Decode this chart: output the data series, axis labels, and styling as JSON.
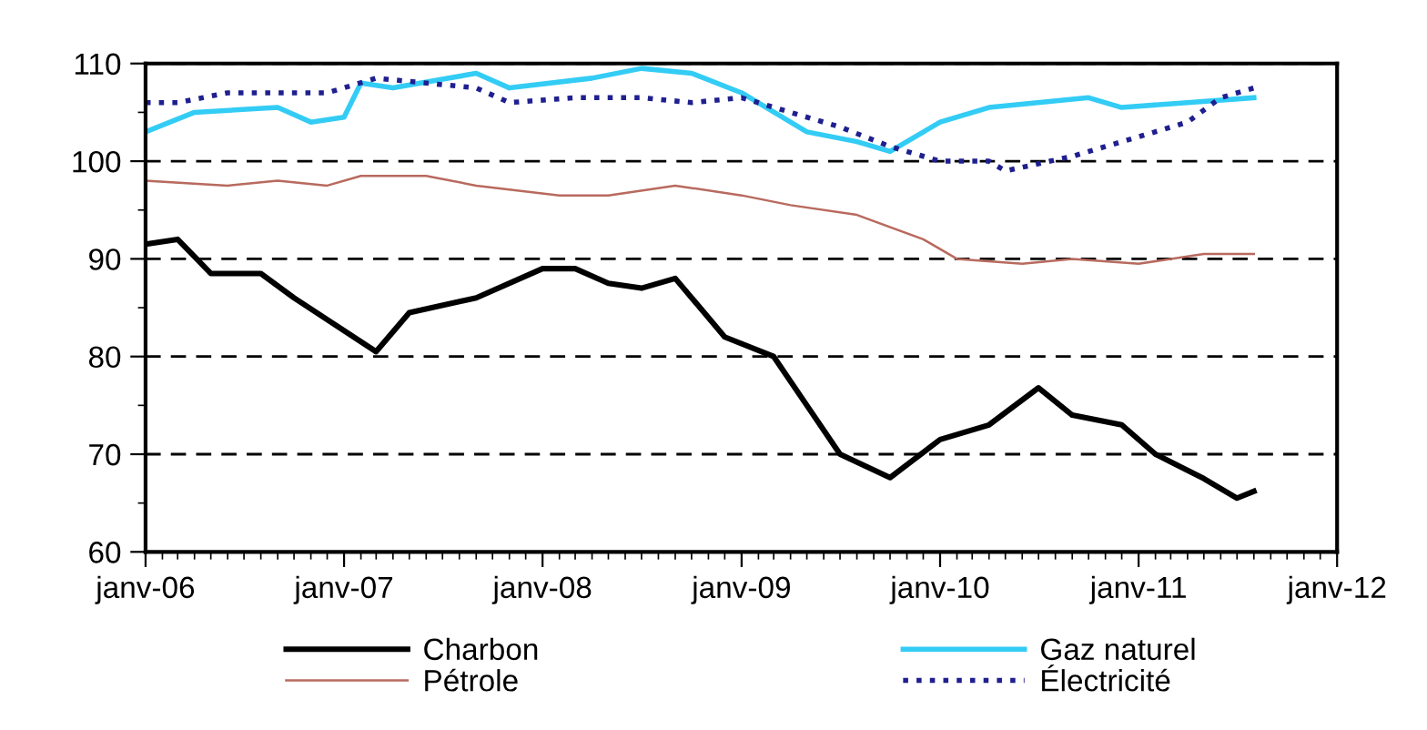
{
  "chart_data": {
    "type": "line",
    "xlim": [
      "2006-01",
      "2012-01"
    ],
    "ylim": [
      60,
      110
    ],
    "yticks": [
      60,
      70,
      80,
      90,
      100,
      110
    ],
    "xticks": [
      {
        "value": "2006-01",
        "label": "janv-06"
      },
      {
        "value": "2007-01",
        "label": "janv-07"
      },
      {
        "value": "2008-01",
        "label": "janv-08"
      },
      {
        "value": "2009-01",
        "label": "janv-09"
      },
      {
        "value": "2010-01",
        "label": "janv-10"
      },
      {
        "value": "2011-01",
        "label": "janv-11"
      },
      {
        "value": "2012-01",
        "label": "janv-12"
      }
    ],
    "grid": "y",
    "legend": "bottom",
    "series": [
      {
        "name": "Charbon",
        "color": "#000000",
        "line_style": "solid",
        "x": [
          "2006-01",
          "2006-03",
          "2006-05",
          "2006-08",
          "2006-10",
          "2007-03",
          "2007-05",
          "2007-09",
          "2008-01",
          "2008-03",
          "2008-05",
          "2008-07",
          "2008-09",
          "2008-12",
          "2009-03",
          "2009-05",
          "2009-07",
          "2009-10",
          "2010-01",
          "2010-04",
          "2010-07",
          "2010-09",
          "2010-12",
          "2011-02",
          "2011-05",
          "2011-07",
          "2011-08"
        ],
        "values": [
          91.5,
          92,
          88.5,
          88.5,
          86,
          80.5,
          84.5,
          86,
          89,
          89,
          87.5,
          87,
          88,
          82,
          80,
          75,
          70,
          67.6,
          71.5,
          73,
          76.8,
          74,
          73,
          70,
          67.5,
          65.5,
          66.2
        ]
      },
      {
        "name": "Pétrole",
        "color": "#b86a5e",
        "line_style": "solid",
        "x": [
          "2006-01",
          "2006-06",
          "2006-09",
          "2006-12",
          "2007-02",
          "2007-06",
          "2007-09",
          "2008-02",
          "2008-05",
          "2008-09",
          "2009-01",
          "2009-04",
          "2009-08",
          "2009-12",
          "2010-02",
          "2010-06",
          "2010-09",
          "2011-01",
          "2011-05",
          "2011-08"
        ],
        "values": [
          98,
          97.5,
          98,
          97.5,
          98.5,
          98.5,
          97.5,
          96.5,
          96.5,
          97.5,
          96.5,
          95.5,
          94.5,
          92,
          90,
          89.5,
          90,
          89.5,
          90.5,
          90.5
        ]
      },
      {
        "name": "Gaz naturel",
        "color": "#33ccf5",
        "line_style": "solid",
        "x": [
          "2006-01",
          "2006-04",
          "2006-09",
          "2006-11",
          "2007-01",
          "2007-02",
          "2007-04",
          "2007-09",
          "2007-11",
          "2008-04",
          "2008-07",
          "2008-10",
          "2009-01",
          "2009-05",
          "2009-08",
          "2009-10",
          "2010-01",
          "2010-04",
          "2010-10",
          "2010-12",
          "2011-04",
          "2011-08"
        ],
        "values": [
          103,
          105,
          105.5,
          104,
          104.5,
          108,
          107.5,
          109,
          107.5,
          108.5,
          109.5,
          109,
          107,
          103,
          102,
          101,
          104,
          105.5,
          106.5,
          105.5,
          106,
          106.5
        ]
      },
      {
        "name": "Électricité",
        "color": "#1f1f8f",
        "line_style": "dotted",
        "x": [
          "2006-01",
          "2006-03",
          "2006-06",
          "2006-12",
          "2007-03",
          "2007-06",
          "2007-09",
          "2007-11",
          "2008-03",
          "2008-07",
          "2008-10",
          "2009-01",
          "2009-04",
          "2009-07",
          "2009-10",
          "2010-01",
          "2010-04",
          "2010-05",
          "2010-09",
          "2011-01",
          "2011-04",
          "2011-06",
          "2011-08"
        ],
        "values": [
          106,
          106,
          107,
          107,
          108.5,
          108,
          107.5,
          106,
          106.5,
          106.5,
          106,
          106.5,
          105,
          103.5,
          101.5,
          100,
          100,
          99,
          100.5,
          102.5,
          104,
          106.5,
          107.5
        ]
      }
    ]
  }
}
